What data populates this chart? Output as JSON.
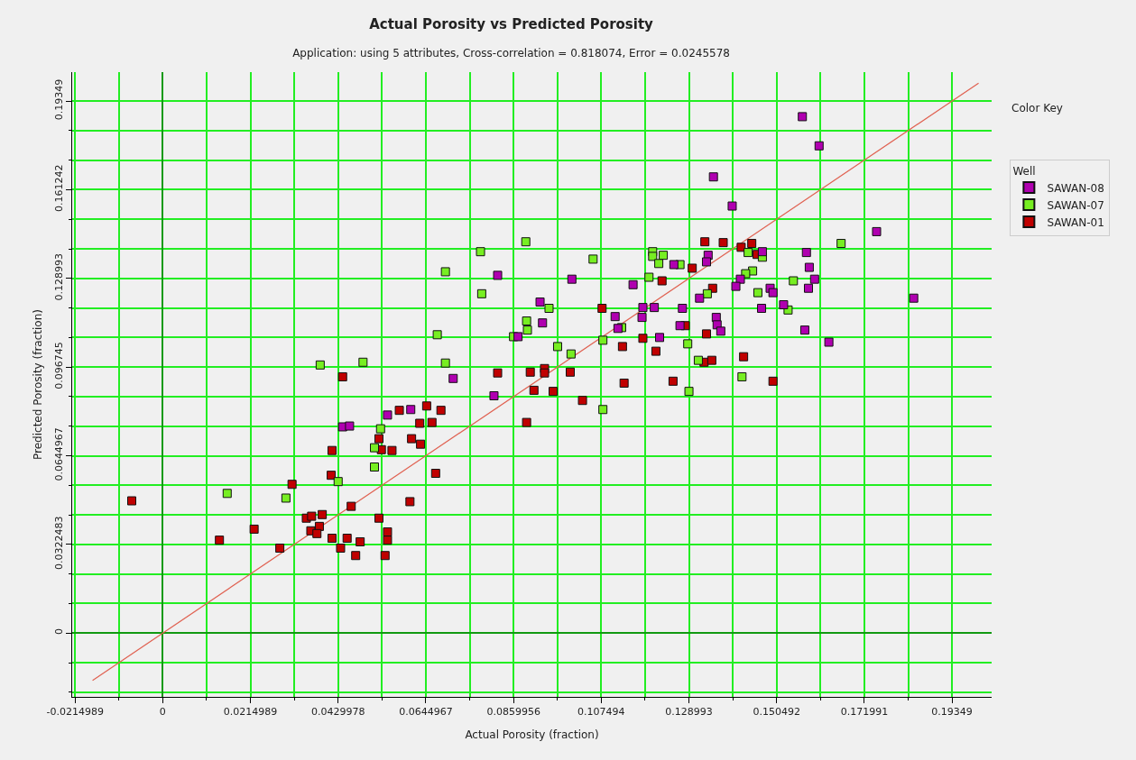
{
  "chart_data": {
    "type": "scatter",
    "title": "Actual Porosity vs Predicted Porosity",
    "subtitle": "Application: using 5 attributes, Cross-correlation = 0.818074, Error = 0.0245578",
    "xlabel": "Actual Porosity (fraction)",
    "ylabel": "Predicted Porosity (fraction)",
    "legend_title": "Well",
    "annotations": [
      "Color Key"
    ],
    "xlim": [
      -0.0222,
      0.2032
    ],
    "ylim": [
      -0.0232,
      0.204
    ],
    "xticks": [
      {
        "value": -0.0214989,
        "label": "-0.0214989"
      },
      0,
      0.0214989,
      0.0429978,
      0.0644967,
      0.0859956,
      0.107494,
      0.128993,
      0.150492,
      0.171991,
      0.19349
    ],
    "yticks": [
      0,
      0.0322483,
      0.0644967,
      0.096745,
      0.128993,
      0.161242,
      0.19349
    ],
    "grid": true,
    "legend": "right",
    "marker": "square",
    "series": [
      {
        "name": "SAWAN-01",
        "color": "#c00000",
        "x": [
          0.0441,
          0.0821,
          0.0901,
          0.0936,
          0.0936,
          0.091,
          0.1329,
          0.1374,
          0.1418,
          0.1444,
          0.1457,
          0.1224,
          0.1298,
          0.1348,
          0.1077,
          0.1281,
          0.1333,
          0.1177,
          0.1127,
          0.1209,
          0.0999,
          0.1131,
          0.1251,
          0.1496,
          0.1424,
          0.1327,
          0.1346,
          0.0957,
          0.1029,
          -0.0076,
          0.0139,
          0.0224,
          0.0287,
          0.0317,
          0.0352,
          0.0365,
          0.0391,
          0.0384,
          0.0363,
          0.0378,
          0.0415,
          0.0452,
          0.0436,
          0.0484,
          0.0473,
          0.0462,
          0.053,
          0.0551,
          0.0551,
          0.0545,
          0.0606,
          0.0669,
          0.0413,
          0.0415,
          0.0536,
          0.053,
          0.0562,
          0.058,
          0.0647,
          0.0682,
          0.063,
          0.066,
          0.061,
          0.0632,
          0.0892
        ],
        "values": [
          0.0932,
          0.0946,
          0.0949,
          0.0962,
          0.0946,
          0.0883,
          0.1423,
          0.142,
          0.1403,
          0.1417,
          0.1377,
          0.1281,
          0.1327,
          0.1254,
          0.1181,
          0.1118,
          0.1088,
          0.1072,
          0.1042,
          0.1025,
          0.0949,
          0.0909,
          0.0916,
          0.0916,
          0.1005,
          0.0985,
          0.0992,
          0.0879,
          0.0846,
          0.0481,
          0.0338,
          0.0378,
          0.0309,
          0.0541,
          0.0418,
          0.0425,
          0.0431,
          0.0388,
          0.0372,
          0.0362,
          0.0345,
          0.0345,
          0.0309,
          0.0332,
          0.0282,
          0.0461,
          0.0418,
          0.0368,
          0.0338,
          0.0282,
          0.0478,
          0.0581,
          0.0574,
          0.0664,
          0.0667,
          0.0707,
          0.0664,
          0.081,
          0.0826,
          0.081,
          0.0763,
          0.0766,
          0.0707,
          0.0687,
          0.0766
        ]
      },
      {
        "name": "SAWAN-07",
        "color": "#77ee22",
        "x": [
          0.089,
          0.0779,
          0.0693,
          0.0782,
          0.0892,
          0.0894,
          0.0673,
          0.086,
          0.0386,
          0.0491,
          0.0693,
          0.1663,
          0.1435,
          0.147,
          0.1546,
          0.1055,
          0.1192,
          0.1201,
          0.1201,
          0.1227,
          0.1216,
          0.1268,
          0.1446,
          0.1429,
          0.1335,
          0.1459,
          0.1533,
          0.0947,
          0.1125,
          0.1287,
          0.1079,
          0.0968,
          0.1001,
          0.142,
          0.1313,
          0.129,
          0.1079,
          0.0158,
          0.0302,
          0.043,
          0.0519,
          0.0519,
          0.0534
        ],
        "values": [
          0.1423,
          0.1387,
          0.1314,
          0.1234,
          0.1135,
          0.1102,
          0.1085,
          0.1078,
          0.0975,
          0.0985,
          0.0982,
          0.1417,
          0.1384,
          0.1367,
          0.1281,
          0.136,
          0.1294,
          0.1387,
          0.137,
          0.1374,
          0.1344,
          0.134,
          0.1317,
          0.1307,
          0.1234,
          0.1238,
          0.1175,
          0.1181,
          0.1111,
          0.1052,
          0.1065,
          0.1042,
          0.1015,
          0.0932,
          0.0992,
          0.0879,
          0.0813,
          0.0508,
          0.0491,
          0.0551,
          0.0604,
          0.0674,
          0.0743
        ]
      },
      {
        "name": "SAWAN-08",
        "color": "#b000b0",
        "x": [
          0.0821,
          0.0925,
          0.0931,
          0.0871,
          0.0712,
          0.0812,
          0.1568,
          0.1609,
          0.135,
          0.1396,
          0.175,
          0.147,
          0.1578,
          0.1585,
          0.1598,
          0.1583,
          0.1839,
          0.1841,
          0.1574,
          0.1633,
          0.1003,
          0.1153,
          0.1253,
          0.1337,
          0.1333,
          0.1416,
          0.1405,
          0.1316,
          0.1489,
          0.1496,
          0.1468,
          0.1522,
          0.1109,
          0.1175,
          0.1177,
          0.1205,
          0.1274,
          0.1116,
          0.1268,
          0.1357,
          0.1359,
          0.1368,
          0.1218,
          0.0441,
          0.0458,
          0.0551,
          0.0608
        ],
        "values": [
          0.1301,
          0.1204,
          0.1128,
          0.1078,
          0.0926,
          0.0863,
          0.1878,
          0.1772,
          0.1659,
          0.1553,
          0.146,
          0.1387,
          0.1384,
          0.133,
          0.1287,
          0.1254,
          null,
          0.1218,
          0.1102,
          0.1058,
          0.1287,
          0.1267,
          0.134,
          0.1374,
          0.135,
          0.1287,
          0.1261,
          0.1218,
          0.1254,
          0.1238,
          0.1181,
          0.1194,
          0.1151,
          0.1148,
          0.1184,
          0.1184,
          0.1181,
          0.1108,
          0.1118,
          0.1148,
          0.1121,
          0.1098,
          0.1075,
          0.075,
          0.0753,
          0.0793,
          0.0813
        ]
      },
      {
        "type": "line",
        "marker": "none",
        "color": "#e06050",
        "x": [
          -0.0172,
          0.2
        ],
        "values": [
          -0.0172,
          0.2
        ]
      }
    ]
  }
}
